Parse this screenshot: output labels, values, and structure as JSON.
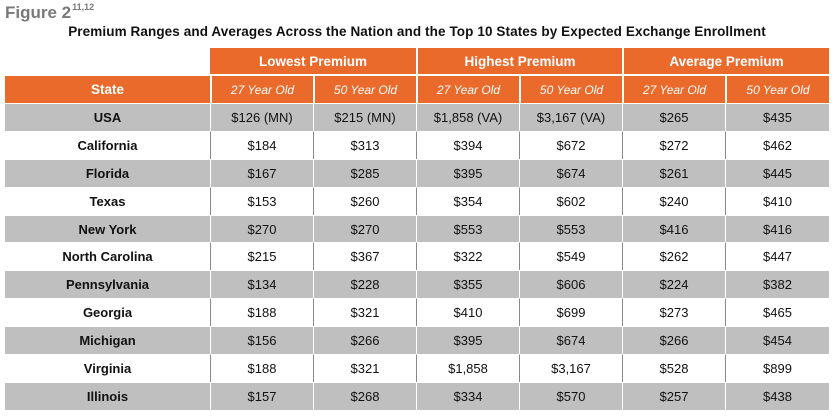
{
  "figure": {
    "label": "Figure 2",
    "superscript": "11,12"
  },
  "title": "Premium Ranges and Averages Across the Nation and the Top 10 States by Expected Exchange Enrollment",
  "table": {
    "group_headers": [
      "Lowest Premium",
      "Highest Premium",
      "Average Premium"
    ],
    "state_header": "State",
    "sub_headers": [
      "27 Year Old",
      "50 Year Old",
      "27 Year Old",
      "50 Year Old",
      "27 Year Old",
      "50 Year Old"
    ],
    "rows": [
      {
        "state": "USA",
        "values": [
          "$126 (MN)",
          "$215 (MN)",
          "$1,858 (VA)",
          "$3,167 (VA)",
          "$265",
          "$435"
        ]
      },
      {
        "state": "California",
        "values": [
          "$184",
          "$313",
          "$394",
          "$672",
          "$272",
          "$462"
        ]
      },
      {
        "state": "Florida",
        "values": [
          "$167",
          "$285",
          "$395",
          "$674",
          "$261",
          "$445"
        ]
      },
      {
        "state": "Texas",
        "values": [
          "$153",
          "$260",
          "$354",
          "$602",
          "$240",
          "$410"
        ]
      },
      {
        "state": "New York",
        "values": [
          "$270",
          "$270",
          "$553",
          "$553",
          "$416",
          "$416"
        ]
      },
      {
        "state": "North Carolina",
        "values": [
          "$215",
          "$367",
          "$322",
          "$549",
          "$262",
          "$447"
        ]
      },
      {
        "state": "Pennsylvania",
        "values": [
          "$134",
          "$228",
          "$355",
          "$606",
          "$224",
          "$382"
        ]
      },
      {
        "state": "Georgia",
        "values": [
          "$188",
          "$321",
          "$410",
          "$699",
          "$273",
          "$465"
        ]
      },
      {
        "state": "Michigan",
        "values": [
          "$156",
          "$266",
          "$395",
          "$674",
          "$266",
          "$454"
        ]
      },
      {
        "state": "Virginia",
        "values": [
          "$188",
          "$321",
          "$1,858",
          "$3,167",
          "$528",
          "$899"
        ]
      },
      {
        "state": "Illinois",
        "values": [
          "$157",
          "$268",
          "$334",
          "$570",
          "$257",
          "$438"
        ]
      }
    ]
  },
  "colors": {
    "header_orange": "#ea6a2b",
    "row_shade": "#bfbfbf",
    "title_gray": "#7a7a7a"
  }
}
